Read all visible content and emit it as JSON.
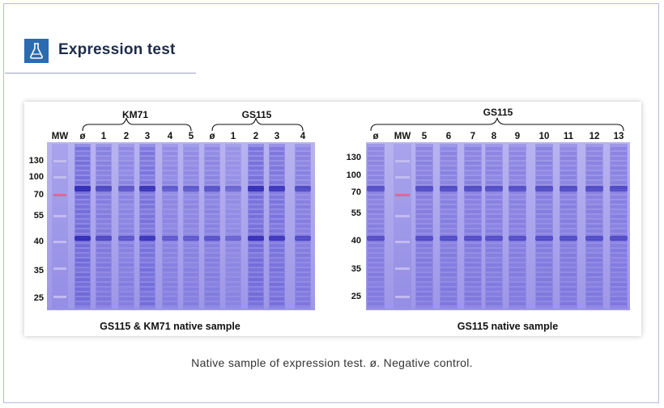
{
  "header": {
    "title": "Expression test",
    "icon": "flask-icon",
    "accent": "#2b6bb0"
  },
  "left_panel": {
    "group_labels": [
      "KM71",
      "GS115"
    ],
    "lanes": [
      "MW",
      "ø",
      "1",
      "2",
      "3",
      "4",
      "5",
      "ø",
      "1",
      "2",
      "3",
      "4"
    ],
    "mw_markers": [
      "130",
      "100",
      "70",
      "55",
      "40",
      "35",
      "25"
    ],
    "footer": "GS115 & KM71 native sample"
  },
  "right_panel": {
    "group_label": "GS115",
    "lanes": [
      "ø",
      "MW",
      "5",
      "6",
      "7",
      "8",
      "9",
      "10",
      "11",
      "12",
      "13"
    ],
    "mw_markers": [
      "130",
      "100",
      "70",
      "55",
      "40",
      "35",
      "25"
    ],
    "footer": "GS115 native sample"
  },
  "caption": "Native sample of expression test. ø. Negative control.",
  "colors": {
    "gel": "#9b95e6",
    "band": "#3e38c4",
    "frame": "#b7b9e6"
  }
}
